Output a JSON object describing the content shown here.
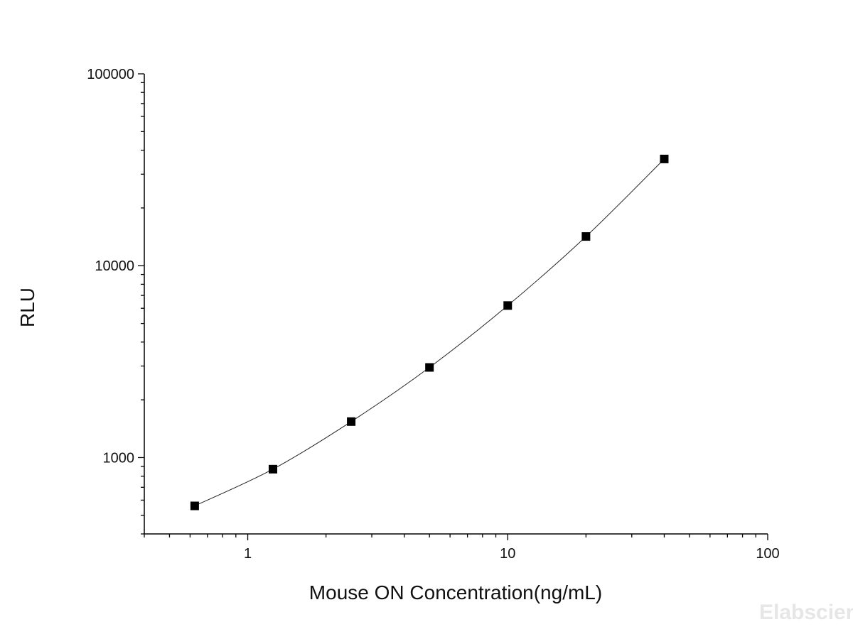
{
  "chart_data": {
    "type": "scatter",
    "title": "",
    "xlabel": "Mouse ON Concentration(ng/mL)",
    "ylabel": "RLU",
    "x_scale": "log",
    "y_scale": "log",
    "xlim": [
      0.4,
      100
    ],
    "ylim": [
      400,
      100000
    ],
    "x_ticks": [
      {
        "value": 1,
        "label": "1"
      },
      {
        "value": 10,
        "label": "10"
      },
      {
        "value": 100,
        "label": "100"
      }
    ],
    "y_ticks": [
      {
        "value": 1000,
        "label": "1000"
      },
      {
        "value": 10000,
        "label": "10000"
      },
      {
        "value": 100000,
        "label": "100000"
      }
    ],
    "grid": false,
    "legend": "none",
    "series": [
      {
        "marker": "square",
        "color": "#000000",
        "line": "smooth-curve",
        "x": [
          0.625,
          1.25,
          2.5,
          5,
          10,
          20,
          40
        ],
        "y": [
          560,
          870,
          1540,
          2950,
          6200,
          14200,
          36000
        ]
      }
    ]
  },
  "watermark": "Elabscience"
}
